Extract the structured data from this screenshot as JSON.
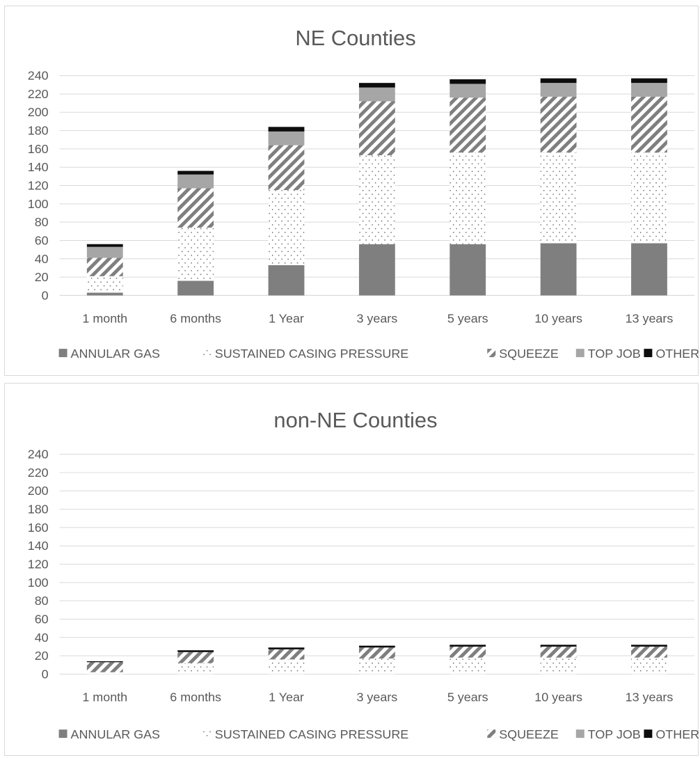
{
  "chart_data": [
    {
      "type": "bar",
      "stacked": true,
      "title": "NE Counties",
      "xlabel": "",
      "ylabel": "",
      "ylim": [
        0,
        240
      ],
      "yticks": [
        0,
        20,
        40,
        60,
        80,
        100,
        120,
        140,
        160,
        180,
        200,
        220,
        240
      ],
      "grid": true,
      "legend_position": "bottom",
      "categories": [
        "1 month",
        "6 months",
        "1 Year",
        "3 years",
        "5 years",
        "10 years",
        "13 years"
      ],
      "series": [
        {
          "name": "ANNULAR GAS",
          "color": "#7f7f7f",
          "pattern": "solid",
          "values": [
            3,
            16,
            33,
            56,
            56,
            57,
            57
          ]
        },
        {
          "name": "SUSTAINED CASING PRESSURE",
          "color": "#595959",
          "pattern": "dots",
          "values": [
            18,
            58,
            82,
            97,
            100,
            99,
            99
          ]
        },
        {
          "name": "SQUEEZE",
          "color": "#7f7f7f",
          "pattern": "diagonal",
          "values": [
            20,
            43,
            49,
            59,
            60,
            61,
            61
          ]
        },
        {
          "name": "TOP JOB",
          "color": "#a6a6a6",
          "pattern": "solid",
          "values": [
            12,
            15,
            15,
            15,
            15,
            15,
            15
          ]
        },
        {
          "name": "OTHER",
          "color": "#0d0d0d",
          "pattern": "solid",
          "values": [
            3,
            4,
            5,
            5,
            5,
            5,
            5
          ]
        }
      ]
    },
    {
      "type": "bar",
      "stacked": true,
      "title": "non-NE Counties",
      "xlabel": "",
      "ylabel": "",
      "ylim": [
        0,
        240
      ],
      "yticks": [
        0,
        20,
        40,
        60,
        80,
        100,
        120,
        140,
        160,
        180,
        200,
        220,
        240
      ],
      "grid": true,
      "legend_position": "bottom",
      "categories": [
        "1 month",
        "6 months",
        "1 Year",
        "3 years",
        "5 years",
        "10 years",
        "13 years"
      ],
      "series": [
        {
          "name": "ANNULAR GAS",
          "color": "#7f7f7f",
          "pattern": "solid",
          "values": [
            0,
            0,
            0,
            0,
            0,
            0,
            0
          ]
        },
        {
          "name": "SUSTAINED CASING PRESSURE",
          "color": "#595959",
          "pattern": "dots",
          "values": [
            2,
            12,
            16,
            17,
            18,
            18,
            18
          ]
        },
        {
          "name": "SQUEEZE",
          "color": "#7f7f7f",
          "pattern": "diagonal",
          "values": [
            11,
            12,
            11,
            12,
            12,
            12,
            12
          ]
        },
        {
          "name": "TOP JOB",
          "color": "#a6a6a6",
          "pattern": "solid",
          "values": [
            0,
            0,
            0,
            0,
            0,
            0,
            0
          ]
        },
        {
          "name": "OTHER",
          "color": "#0d0d0d",
          "pattern": "solid",
          "values": [
            1,
            2,
            2,
            2,
            2,
            2,
            2
          ]
        }
      ]
    }
  ]
}
